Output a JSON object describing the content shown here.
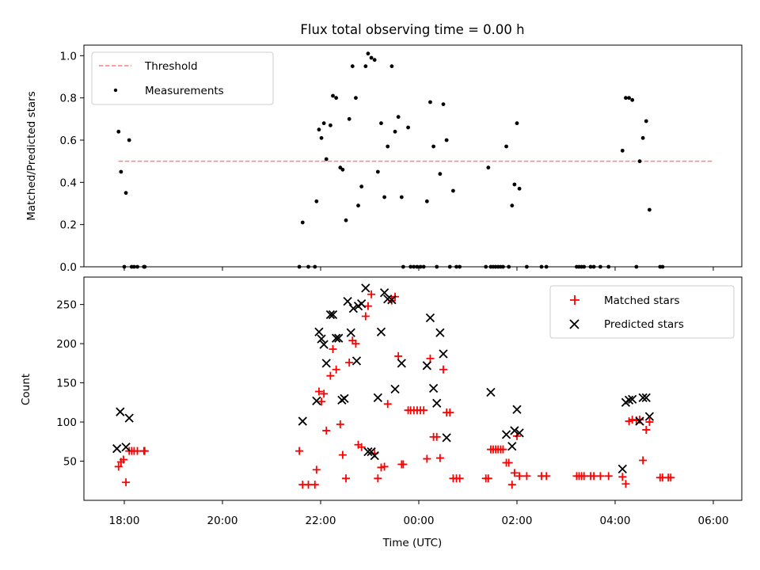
{
  "chart_data": [
    {
      "type": "scatter",
      "title": "Flux total observing time = 0.00 h",
      "xlabel": "",
      "ylabel": "Matched/Predicted stars",
      "ylim": [
        0,
        1.05
      ],
      "yticks": [
        "0.0",
        "0.2",
        "0.4",
        "0.6",
        "0.8",
        "1.0"
      ],
      "legend": {
        "position": "top-left",
        "entries": [
          "Threshold",
          "Measurements"
        ]
      },
      "threshold": {
        "name": "Threshold",
        "value": 0.5,
        "x_start": "17:53",
        "x_end": "06:00",
        "color": "#ff7f7f"
      },
      "series": [
        {
          "name": "Measurements",
          "color": "#000000",
          "points": [
            [
              "17:53",
              0.64
            ],
            [
              "17:56",
              0.45
            ],
            [
              "18:00",
              0.0
            ],
            [
              "18:02",
              0.35
            ],
            [
              "18:06",
              0.6
            ],
            [
              "18:09",
              0.0
            ],
            [
              "18:12",
              0.0
            ],
            [
              "18:16",
              0.0
            ],
            [
              "18:24",
              0.0
            ],
            [
              "18:25",
              0.0
            ],
            [
              "21:34",
              0.0
            ],
            [
              "21:38",
              0.21
            ],
            [
              "21:45",
              0.0
            ],
            [
              "21:53",
              0.0
            ],
            [
              "21:55",
              0.31
            ],
            [
              "21:58",
              0.65
            ],
            [
              "22:01",
              0.61
            ],
            [
              "22:04",
              0.68
            ],
            [
              "22:07",
              0.51
            ],
            [
              "22:12",
              0.67
            ],
            [
              "22:15",
              0.81
            ],
            [
              "22:19",
              0.8
            ],
            [
              "22:24",
              0.47
            ],
            [
              "22:27",
              0.46
            ],
            [
              "22:31",
              0.22
            ],
            [
              "22:35",
              0.7
            ],
            [
              "22:39",
              0.95
            ],
            [
              "22:43",
              0.8
            ],
            [
              "22:46",
              0.29
            ],
            [
              "22:50",
              0.38
            ],
            [
              "22:55",
              0.95
            ],
            [
              "22:58",
              1.01
            ],
            [
              "23:02",
              0.99
            ],
            [
              "23:06",
              0.98
            ],
            [
              "23:10",
              0.45
            ],
            [
              "23:14",
              0.68
            ],
            [
              "23:18",
              0.33
            ],
            [
              "23:22",
              0.57
            ],
            [
              "23:27",
              0.95
            ],
            [
              "23:31",
              0.64
            ],
            [
              "23:35",
              0.71
            ],
            [
              "23:39",
              0.33
            ],
            [
              "23:41",
              0.0
            ],
            [
              "23:47",
              0.66
            ],
            [
              "23:50",
              0.0
            ],
            [
              "23:54",
              0.0
            ],
            [
              "23:58",
              0.0
            ],
            [
              "00:02",
              0.0
            ],
            [
              "00:06",
              0.0
            ],
            [
              "00:10",
              0.31
            ],
            [
              "00:14",
              0.78
            ],
            [
              "00:18",
              0.57
            ],
            [
              "00:22",
              0.0
            ],
            [
              "00:26",
              0.44
            ],
            [
              "00:30",
              0.77
            ],
            [
              "00:34",
              0.6
            ],
            [
              "00:38",
              0.0
            ],
            [
              "00:42",
              0.36
            ],
            [
              "00:46",
              0.0
            ],
            [
              "00:50",
              0.0
            ],
            [
              "01:22",
              0.0
            ],
            [
              "01:25",
              0.47
            ],
            [
              "01:28",
              0.0
            ],
            [
              "01:31",
              0.0
            ],
            [
              "01:34",
              0.0
            ],
            [
              "01:37",
              0.0
            ],
            [
              "01:40",
              0.0
            ],
            [
              "01:43",
              0.0
            ],
            [
              "01:47",
              0.57
            ],
            [
              "01:50",
              0.0
            ],
            [
              "01:54",
              0.29
            ],
            [
              "01:57",
              0.39
            ],
            [
              "02:00",
              0.68
            ],
            [
              "02:03",
              0.37
            ],
            [
              "02:12",
              0.0
            ],
            [
              "02:30",
              0.0
            ],
            [
              "02:36",
              0.0
            ],
            [
              "03:13",
              0.0
            ],
            [
              "03:16",
              0.0
            ],
            [
              "03:19",
              0.0
            ],
            [
              "03:22",
              0.0
            ],
            [
              "03:30",
              0.0
            ],
            [
              "03:34",
              0.0
            ],
            [
              "03:42",
              0.0
            ],
            [
              "03:52",
              0.0
            ],
            [
              "04:09",
              0.55
            ],
            [
              "04:13",
              0.8
            ],
            [
              "04:17",
              0.8
            ],
            [
              "04:21",
              0.79
            ],
            [
              "04:26",
              0.0
            ],
            [
              "04:30",
              0.5
            ],
            [
              "04:34",
              0.61
            ],
            [
              "04:38",
              0.69
            ],
            [
              "04:42",
              0.27
            ],
            [
              "04:55",
              0.0
            ],
            [
              "04:58",
              0.0
            ]
          ]
        }
      ]
    },
    {
      "type": "scatter",
      "title": "",
      "xlabel": "Time (UTC)",
      "ylabel": "Count",
      "ylim": [
        0,
        285
      ],
      "yticks": [
        "50",
        "100",
        "150",
        "200",
        "250"
      ],
      "xticks": [
        "18:00",
        "20:00",
        "22:00",
        "00:00",
        "02:00",
        "04:00",
        "06:00"
      ],
      "legend": {
        "position": "top-right",
        "entries": [
          "Matched stars",
          "Predicted stars"
        ]
      },
      "series": [
        {
          "name": "Matched stars",
          "marker": "plus",
          "color": "#ff0000",
          "points": [
            [
              "17:53",
              43
            ],
            [
              "17:56",
              49
            ],
            [
              "17:59",
              52
            ],
            [
              "18:02",
              23
            ],
            [
              "18:06",
              63
            ],
            [
              "18:09",
              63
            ],
            [
              "18:12",
              63
            ],
            [
              "18:16",
              63
            ],
            [
              "18:24",
              63
            ],
            [
              "18:25",
              63
            ],
            [
              "21:34",
              63
            ],
            [
              "21:38",
              20
            ],
            [
              "21:45",
              20
            ],
            [
              "21:53",
              20
            ],
            [
              "21:55",
              39
            ],
            [
              "21:58",
              139
            ],
            [
              "22:01",
              126
            ],
            [
              "22:04",
              136
            ],
            [
              "22:07",
              89
            ],
            [
              "22:12",
              159
            ],
            [
              "22:15",
              193
            ],
            [
              "22:19",
              167
            ],
            [
              "22:24",
              97
            ],
            [
              "22:27",
              58
            ],
            [
              "22:31",
              28
            ],
            [
              "22:35",
              176
            ],
            [
              "22:39",
              204
            ],
            [
              "22:43",
              200
            ],
            [
              "22:46",
              71
            ],
            [
              "22:50",
              68
            ],
            [
              "22:55",
              235
            ],
            [
              "22:58",
              248
            ],
            [
              "23:02",
              263
            ],
            [
              "23:06",
              60
            ],
            [
              "23:10",
              28
            ],
            [
              "23:14",
              42
            ],
            [
              "23:18",
              43
            ],
            [
              "23:22",
              123
            ],
            [
              "23:27",
              255
            ],
            [
              "23:31",
              260
            ],
            [
              "23:35",
              184
            ],
            [
              "23:39",
              46
            ],
            [
              "23:41",
              46
            ],
            [
              "23:47",
              115
            ],
            [
              "23:50",
              115
            ],
            [
              "23:54",
              115
            ],
            [
              "23:58",
              115
            ],
            [
              "00:02",
              115
            ],
            [
              "00:06",
              115
            ],
            [
              "00:10",
              53
            ],
            [
              "00:14",
              181
            ],
            [
              "00:18",
              81
            ],
            [
              "00:22",
              81
            ],
            [
              "00:26",
              54
            ],
            [
              "00:30",
              167
            ],
            [
              "00:34",
              112
            ],
            [
              "00:38",
              112
            ],
            [
              "00:42",
              28
            ],
            [
              "00:46",
              28
            ],
            [
              "00:50",
              28
            ],
            [
              "01:22",
              28
            ],
            [
              "01:25",
              28
            ],
            [
              "01:28",
              65
            ],
            [
              "01:31",
              65
            ],
            [
              "01:34",
              65
            ],
            [
              "01:37",
              65
            ],
            [
              "01:40",
              65
            ],
            [
              "01:43",
              65
            ],
            [
              "01:47",
              48
            ],
            [
              "01:50",
              48
            ],
            [
              "01:54",
              20
            ],
            [
              "01:57",
              35
            ],
            [
              "02:00",
              82
            ],
            [
              "02:03",
              31
            ],
            [
              "02:12",
              31
            ],
            [
              "02:30",
              31
            ],
            [
              "02:36",
              31
            ],
            [
              "03:13",
              31
            ],
            [
              "03:16",
              31
            ],
            [
              "03:19",
              31
            ],
            [
              "03:22",
              31
            ],
            [
              "03:30",
              31
            ],
            [
              "03:34",
              31
            ],
            [
              "03:42",
              31
            ],
            [
              "03:52",
              31
            ],
            [
              "04:09",
              30
            ],
            [
              "04:13",
              21
            ],
            [
              "04:17",
              101
            ],
            [
              "04:21",
              103
            ],
            [
              "04:26",
              102
            ],
            [
              "04:30",
              103
            ],
            [
              "04:34",
              51
            ],
            [
              "04:38",
              90
            ],
            [
              "04:42",
              100
            ],
            [
              "04:55",
              29
            ],
            [
              "04:58",
              29
            ],
            [
              "05:05",
              29
            ],
            [
              "05:08",
              29
            ]
          ]
        },
        {
          "name": "Predicted stars",
          "marker": "x",
          "color": "#000000",
          "points": [
            [
              "17:51",
              66
            ],
            [
              "17:55",
              113
            ],
            [
              "18:02",
              68
            ],
            [
              "18:06",
              105
            ],
            [
              "21:38",
              101
            ],
            [
              "21:55",
              127
            ],
            [
              "21:58",
              215
            ],
            [
              "22:01",
              206
            ],
            [
              "22:04",
              199
            ],
            [
              "22:07",
              175
            ],
            [
              "22:12",
              237
            ],
            [
              "22:15",
              237
            ],
            [
              "22:19",
              207
            ],
            [
              "22:22",
              207
            ],
            [
              "22:26",
              128
            ],
            [
              "22:29",
              130
            ],
            [
              "22:33",
              254
            ],
            [
              "22:37",
              214
            ],
            [
              "22:40",
              245
            ],
            [
              "22:44",
              178
            ],
            [
              "22:46",
              248
            ],
            [
              "22:50",
              251
            ],
            [
              "22:55",
              271
            ],
            [
              "22:58",
              62
            ],
            [
              "23:02",
              62
            ],
            [
              "23:06",
              57
            ],
            [
              "23:10",
              131
            ],
            [
              "23:14",
              215
            ],
            [
              "23:18",
              265
            ],
            [
              "23:22",
              257
            ],
            [
              "23:27",
              256
            ],
            [
              "23:31",
              142
            ],
            [
              "23:39",
              175
            ],
            [
              "00:10",
              172
            ],
            [
              "00:14",
              233
            ],
            [
              "00:18",
              143
            ],
            [
              "00:22",
              124
            ],
            [
              "00:26",
              214
            ],
            [
              "00:30",
              187
            ],
            [
              "00:34",
              80
            ],
            [
              "01:28",
              138
            ],
            [
              "01:47",
              84
            ],
            [
              "01:54",
              69
            ],
            [
              "01:57",
              89
            ],
            [
              "02:00",
              116
            ],
            [
              "02:03",
              86
            ],
            [
              "04:09",
              40
            ],
            [
              "04:13",
              125
            ],
            [
              "04:17",
              128
            ],
            [
              "04:21",
              129
            ],
            [
              "04:30",
              101
            ],
            [
              "04:34",
              131
            ],
            [
              "04:38",
              131
            ],
            [
              "04:42",
              107
            ]
          ]
        }
      ]
    }
  ]
}
